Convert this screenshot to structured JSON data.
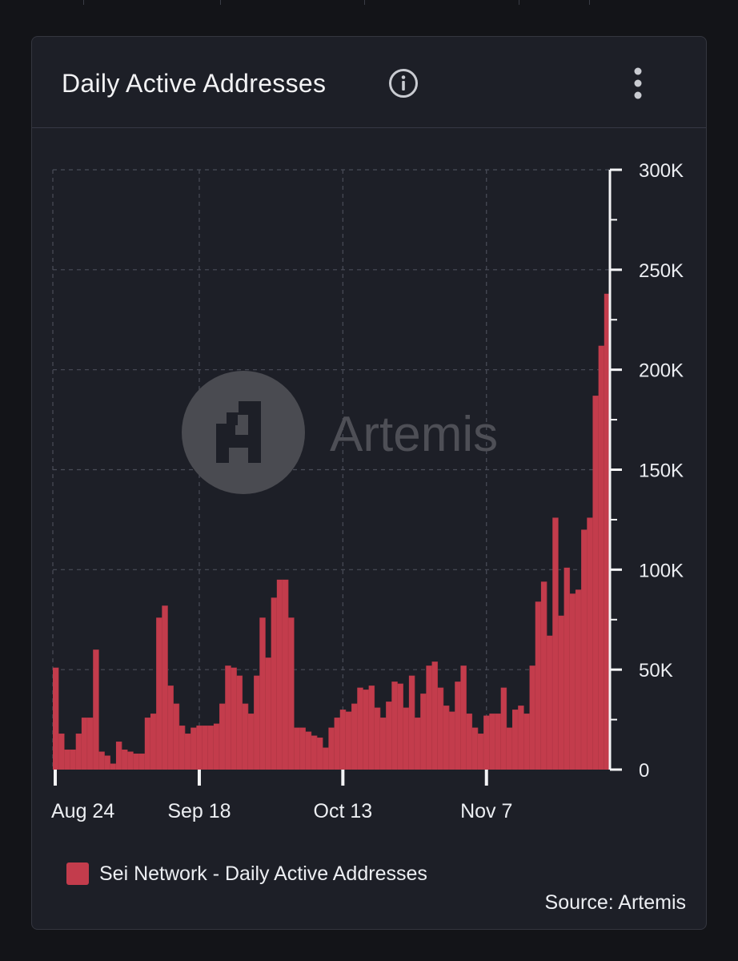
{
  "card": {
    "title": "Daily Active Addresses",
    "info_icon": "info-circle-icon",
    "menu_icon": "vertical-dots-icon"
  },
  "watermark": {
    "text": "Artemis",
    "icon": "artemis-logo-icon"
  },
  "legend": {
    "label": "Sei Network - Daily Active Addresses",
    "color": "#c33c4c"
  },
  "source": "Source: Artemis",
  "colors": {
    "bar": "#c33c4c",
    "background": "#1d1f27",
    "grid": "#4a4d58",
    "axis": "#f4f4f6",
    "text": "#eceef2"
  },
  "chart_data": {
    "type": "bar",
    "title": "Daily Active Addresses",
    "series": [
      {
        "name": "Sei Network - Daily Active Addresses"
      }
    ],
    "x_ticks": [
      "Aug 24",
      "Sep 18",
      "Oct 13",
      "Nov 7"
    ],
    "y_ticks": [
      "0",
      "50K",
      "100K",
      "150K",
      "200K",
      "250K",
      "300K"
    ],
    "ylim": [
      0,
      300000
    ],
    "y_axis_side": "right",
    "grid": true,
    "legend_position": "bottom-left",
    "start_label": "Aug 24",
    "values": [
      51000,
      18000,
      10000,
      10000,
      18000,
      26000,
      26000,
      60000,
      9000,
      7000,
      3000,
      14000,
      10000,
      9000,
      8000,
      8000,
      26000,
      28000,
      76000,
      82000,
      42000,
      33000,
      22000,
      18000,
      21000,
      22000,
      22000,
      22000,
      23000,
      33000,
      52000,
      51000,
      47000,
      33000,
      28000,
      47000,
      76000,
      56000,
      86000,
      95000,
      95000,
      76000,
      21000,
      21000,
      19000,
      17000,
      16000,
      11000,
      21000,
      26000,
      30000,
      29000,
      33000,
      41000,
      40000,
      42000,
      31000,
      26000,
      34000,
      44000,
      43000,
      31000,
      47000,
      26000,
      38000,
      52000,
      54000,
      41000,
      32000,
      29000,
      44000,
      52000,
      28000,
      21000,
      18000,
      27000,
      28000,
      28000,
      41000,
      21000,
      30000,
      32000,
      28000,
      52000,
      84000,
      94000,
      67000,
      126000,
      77000,
      101000,
      88000,
      90000,
      120000,
      126000,
      187000,
      212000,
      238000
    ]
  }
}
